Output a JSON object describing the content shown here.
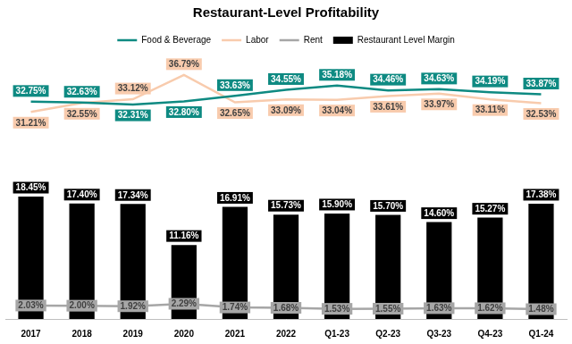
{
  "chart_data": {
    "type": "bar",
    "title": "Restaurant-Level Profitability",
    "categories": [
      "2017",
      "2018",
      "2019",
      "2020",
      "2021",
      "2022",
      "Q1-23",
      "Q2-23",
      "Q3-23",
      "Q4-23",
      "Q1-24"
    ],
    "series": [
      {
        "name": "Restaurant Level Margin",
        "type": "bar",
        "color": "#000000",
        "values": [
          18.45,
          17.4,
          17.34,
          11.16,
          16.91,
          15.73,
          15.9,
          15.7,
          14.6,
          15.27,
          17.38
        ],
        "value_labels": [
          "18.45%",
          "17.40%",
          "17.34%",
          "11.16%",
          "16.91%",
          "15.73%",
          "15.90%",
          "15.70%",
          "14.60%",
          "15.27%",
          "17.38%"
        ]
      },
      {
        "name": "Food & Beverage",
        "type": "line",
        "color": "#0e8a82",
        "values": [
          32.75,
          32.63,
          32.31,
          32.8,
          33.63,
          34.55,
          35.18,
          34.46,
          34.63,
          34.19,
          33.87
        ],
        "value_labels": [
          "32.75%",
          "32.63%",
          "32.31%",
          "32.80%",
          "33.63%",
          "34.55%",
          "35.18%",
          "34.46%",
          "34.63%",
          "34.19%",
          "33.87%"
        ]
      },
      {
        "name": "Labor",
        "type": "line",
        "color": "#f8cbad",
        "values": [
          31.21,
          32.55,
          33.12,
          36.79,
          32.65,
          33.09,
          33.04,
          33.61,
          33.97,
          33.11,
          32.53
        ],
        "value_labels": [
          "31.21%",
          "32.55%",
          "33.12%",
          "36.79%",
          "32.65%",
          "33.09%",
          "33.04%",
          "33.61%",
          "33.97%",
          "33.11%",
          "32.53%"
        ]
      },
      {
        "name": "Rent",
        "type": "line",
        "color": "#a6a6a6",
        "values": [
          2.03,
          2.0,
          1.92,
          2.29,
          1.74,
          1.68,
          1.53,
          1.55,
          1.63,
          1.62,
          1.48
        ],
        "value_labels": [
          "2.03%",
          "2.00%",
          "1.92%",
          "2.29%",
          "1.74%",
          "1.68%",
          "1.53%",
          "1.55%",
          "1.63%",
          "1.62%",
          "1.48%"
        ]
      }
    ],
    "ylim": [
      0,
      40
    ],
    "yticks": [
      0,
      10,
      20,
      30,
      40
    ],
    "grid": false,
    "legend": "top",
    "data_labels": true,
    "tick_labels": "x"
  }
}
